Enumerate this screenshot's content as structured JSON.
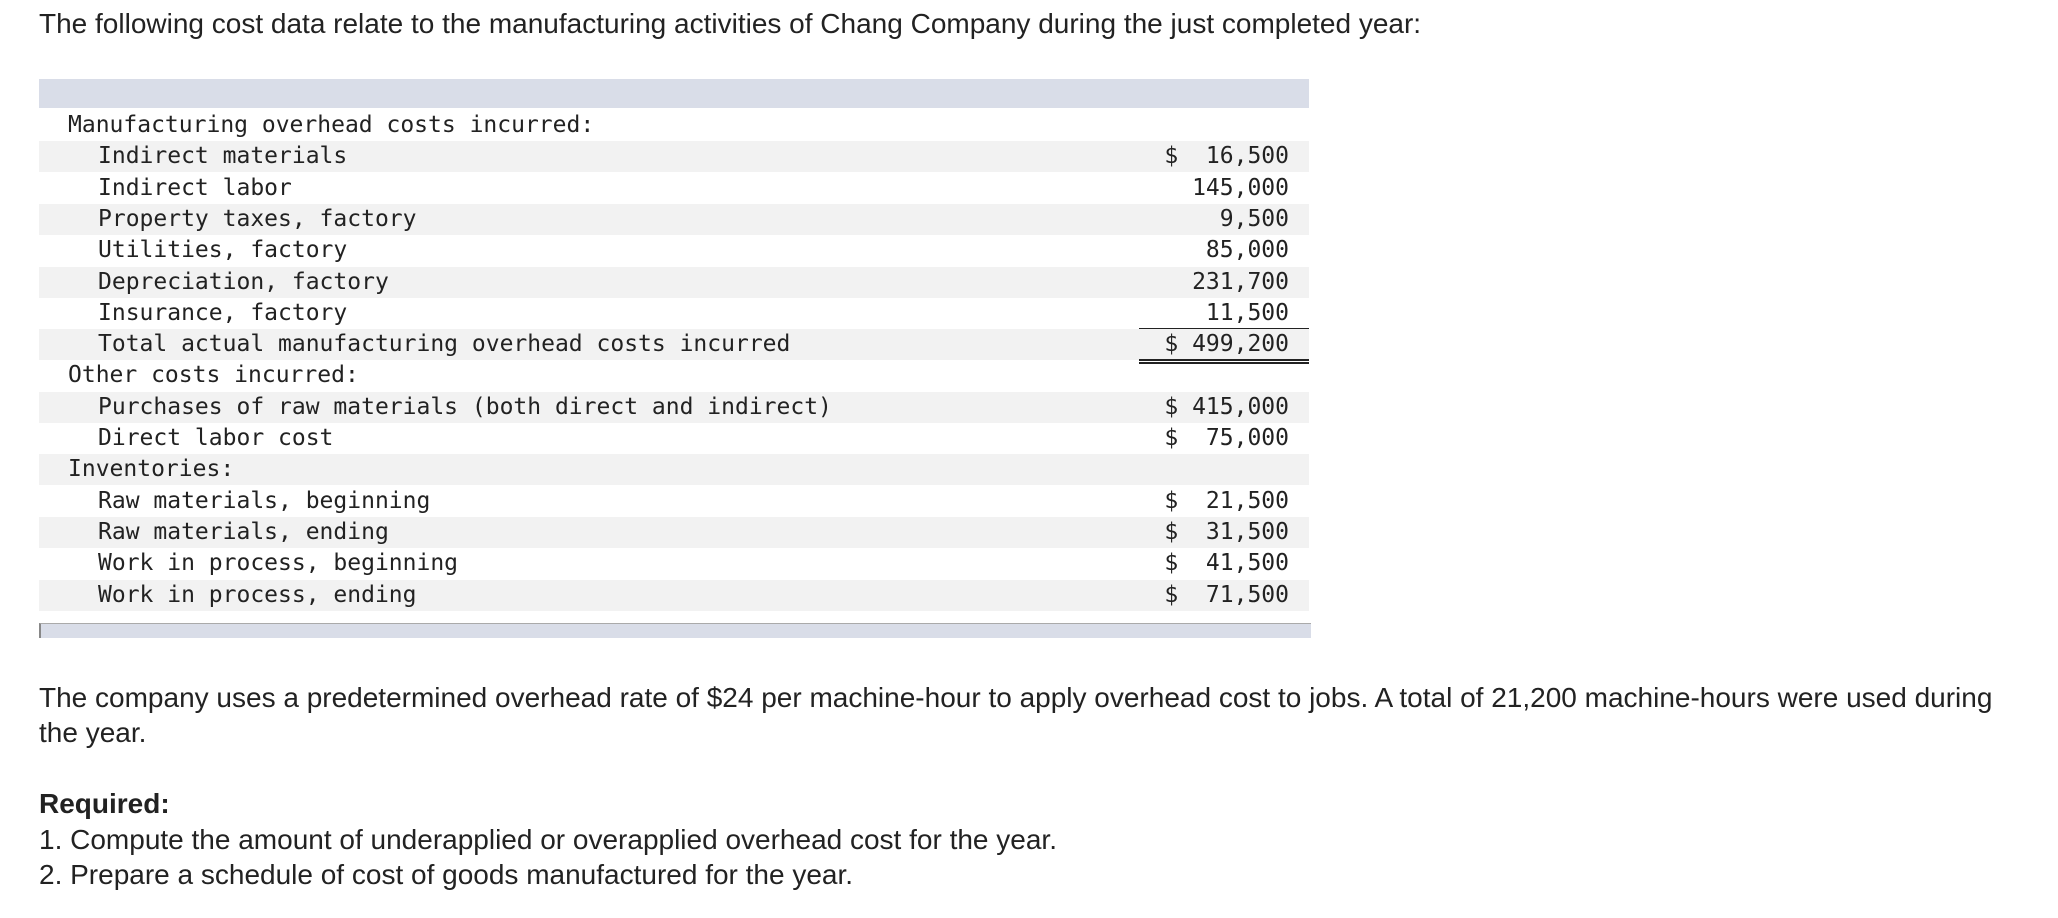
{
  "intro": "The following cost data relate to the manufacturing activities of Chang Company during the just completed year:",
  "table": {
    "sections": [
      {
        "heading": "Manufacturing overhead costs incurred:",
        "items": [
          {
            "label": "Indirect materials",
            "value": "$  16,500"
          },
          {
            "label": "Indirect labor",
            "value": "145,000"
          },
          {
            "label": "Property taxes, factory",
            "value": "9,500"
          },
          {
            "label": "Utilities, factory",
            "value": "85,000"
          },
          {
            "label": "Depreciation, factory",
            "value": "231,700"
          },
          {
            "label": "Insurance, factory",
            "value": "11,500",
            "underline": "single"
          },
          {
            "label": "Total actual manufacturing overhead costs incurred",
            "value": "$ 499,200",
            "underline": "double"
          }
        ]
      },
      {
        "heading": "Other costs incurred:",
        "items": [
          {
            "label": "Purchases of raw materials (both direct and indirect)",
            "value": "$ 415,000"
          },
          {
            "label": "Direct labor cost",
            "value": "$  75,000"
          }
        ]
      },
      {
        "heading": "Inventories:",
        "items": [
          {
            "label": "Raw materials, beginning",
            "value": "$  21,500"
          },
          {
            "label": "Raw materials, ending",
            "value": "$  31,500"
          },
          {
            "label": "Work in process, beginning",
            "value": "$  41,500"
          },
          {
            "label": "Work in process, ending",
            "value": "$  71,500"
          }
        ]
      }
    ]
  },
  "paragraph": "The company uses a predetermined overhead rate of $24 per machine-hour to apply overhead cost to jobs. A total of 21,200 machine-hours were used during the year.",
  "required": {
    "title": "Required:",
    "items": [
      "1. Compute the amount of underapplied or overapplied overhead cost for the year.",
      "2. Prepare a schedule of cost of goods manufactured for the year."
    ]
  }
}
